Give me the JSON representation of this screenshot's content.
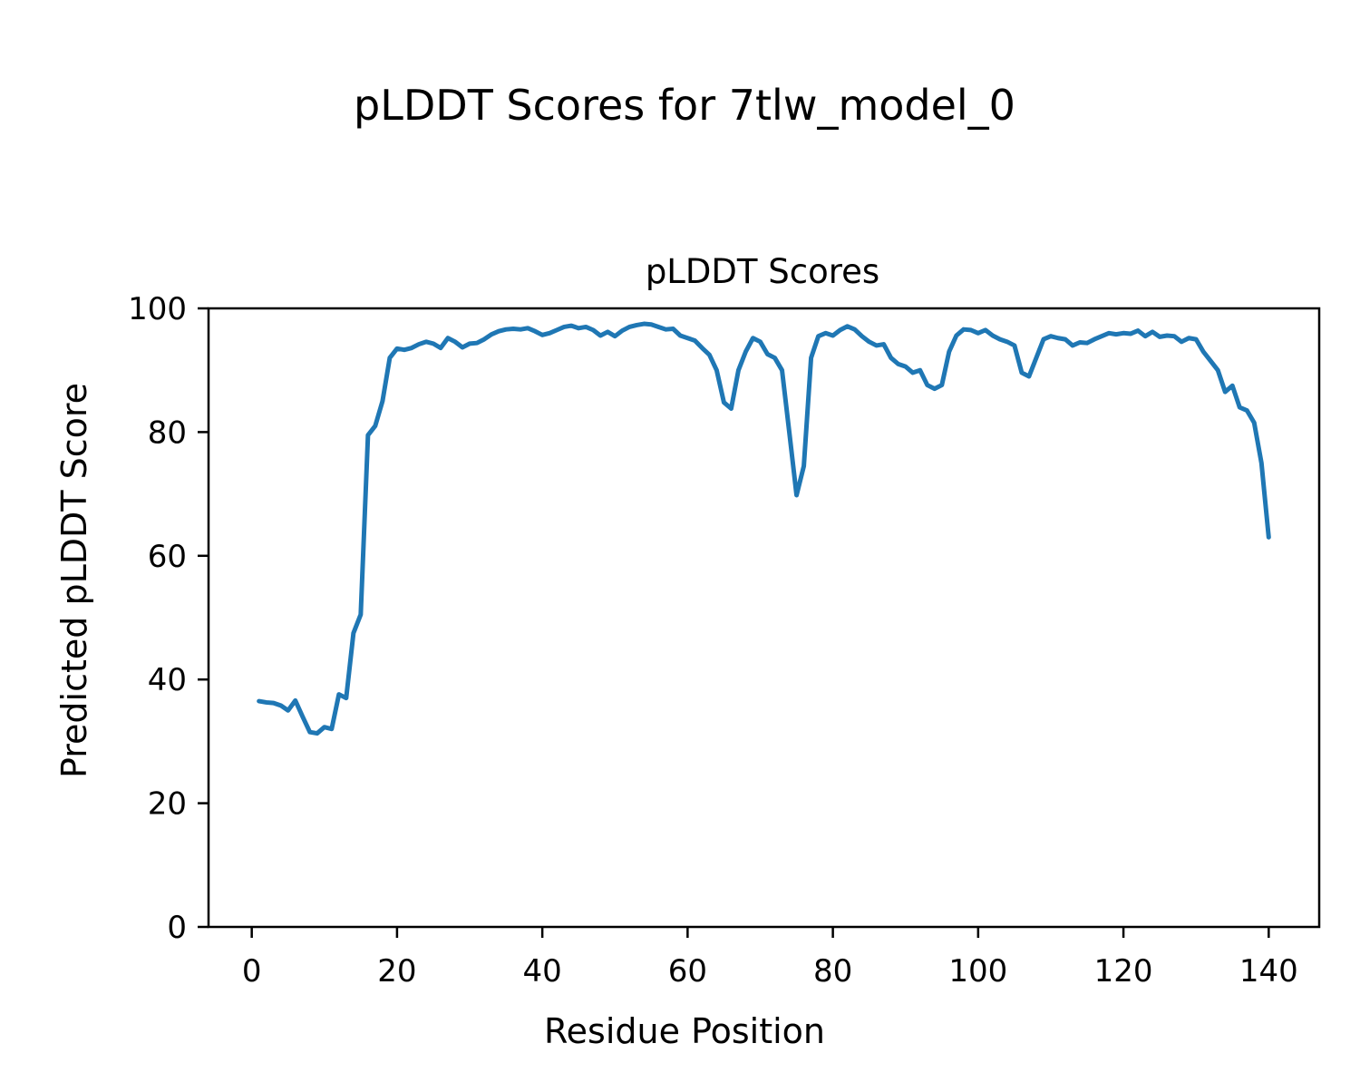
{
  "figure": {
    "title": "pLDDT Scores for 7tlw_model_0",
    "background_color": "#ffffff"
  },
  "chart_data": {
    "type": "line",
    "title": "pLDDT Scores for 7tlw_model_0",
    "axes_title": "pLDDT Scores",
    "xlabel": "Residue Position",
    "ylabel": "Predicted pLDDT Score",
    "line_color": "#1f77b4",
    "grid": false,
    "legend": "none",
    "xlim": [
      -5.95,
      146.95
    ],
    "ylim": [
      0,
      100
    ],
    "xticks": [
      0,
      20,
      40,
      60,
      80,
      100,
      120,
      140
    ],
    "yticks": [
      0,
      20,
      40,
      60,
      80,
      100
    ],
    "series": [
      {
        "name": "pLDDT",
        "x_first": 1,
        "x_step": 1,
        "values": [
          36.5,
          36.3,
          36.2,
          35.8,
          35.0,
          36.6,
          34.0,
          31.5,
          31.3,
          32.3,
          32.0,
          37.6,
          37.0,
          47.5,
          50.5,
          79.5,
          81.0,
          85.0,
          92.0,
          93.5,
          93.3,
          93.6,
          94.2,
          94.6,
          94.3,
          93.6,
          95.2,
          94.6,
          93.7,
          94.3,
          94.4,
          95.0,
          95.8,
          96.3,
          96.6,
          96.7,
          96.6,
          96.8,
          96.3,
          95.7,
          96.0,
          96.5,
          97.0,
          97.2,
          96.8,
          97.0,
          96.5,
          95.6,
          96.2,
          95.5,
          96.4,
          97.0,
          97.3,
          97.5,
          97.4,
          97.0,
          96.6,
          96.7,
          95.6,
          95.2,
          94.8,
          93.6,
          92.5,
          90.0,
          84.8,
          83.8,
          90.0,
          93.0,
          95.2,
          94.6,
          92.6,
          92.0,
          90.0,
          80.0,
          69.8,
          74.5,
          92.0,
          95.5,
          96.0,
          95.6,
          96.5,
          97.1,
          96.6,
          95.5,
          94.6,
          94.0,
          94.2,
          92.0,
          91.0,
          90.6,
          89.6,
          90.0,
          87.6,
          87.0,
          87.6,
          93.0,
          95.6,
          96.6,
          96.5,
          96.0,
          96.5,
          95.6,
          95.0,
          94.6,
          94.0,
          89.6,
          89.0,
          92.0,
          95.0,
          95.5,
          95.2,
          95.0,
          94.0,
          94.5,
          94.4,
          95.0,
          95.5,
          96.0,
          95.8,
          96.0,
          95.9,
          96.4,
          95.5,
          96.2,
          95.4,
          95.6,
          95.5,
          94.6,
          95.2,
          95.0,
          93.0,
          91.5,
          90.0,
          86.5,
          87.5,
          84.0,
          83.5,
          81.5,
          75.0,
          63.0
        ]
      }
    ]
  }
}
